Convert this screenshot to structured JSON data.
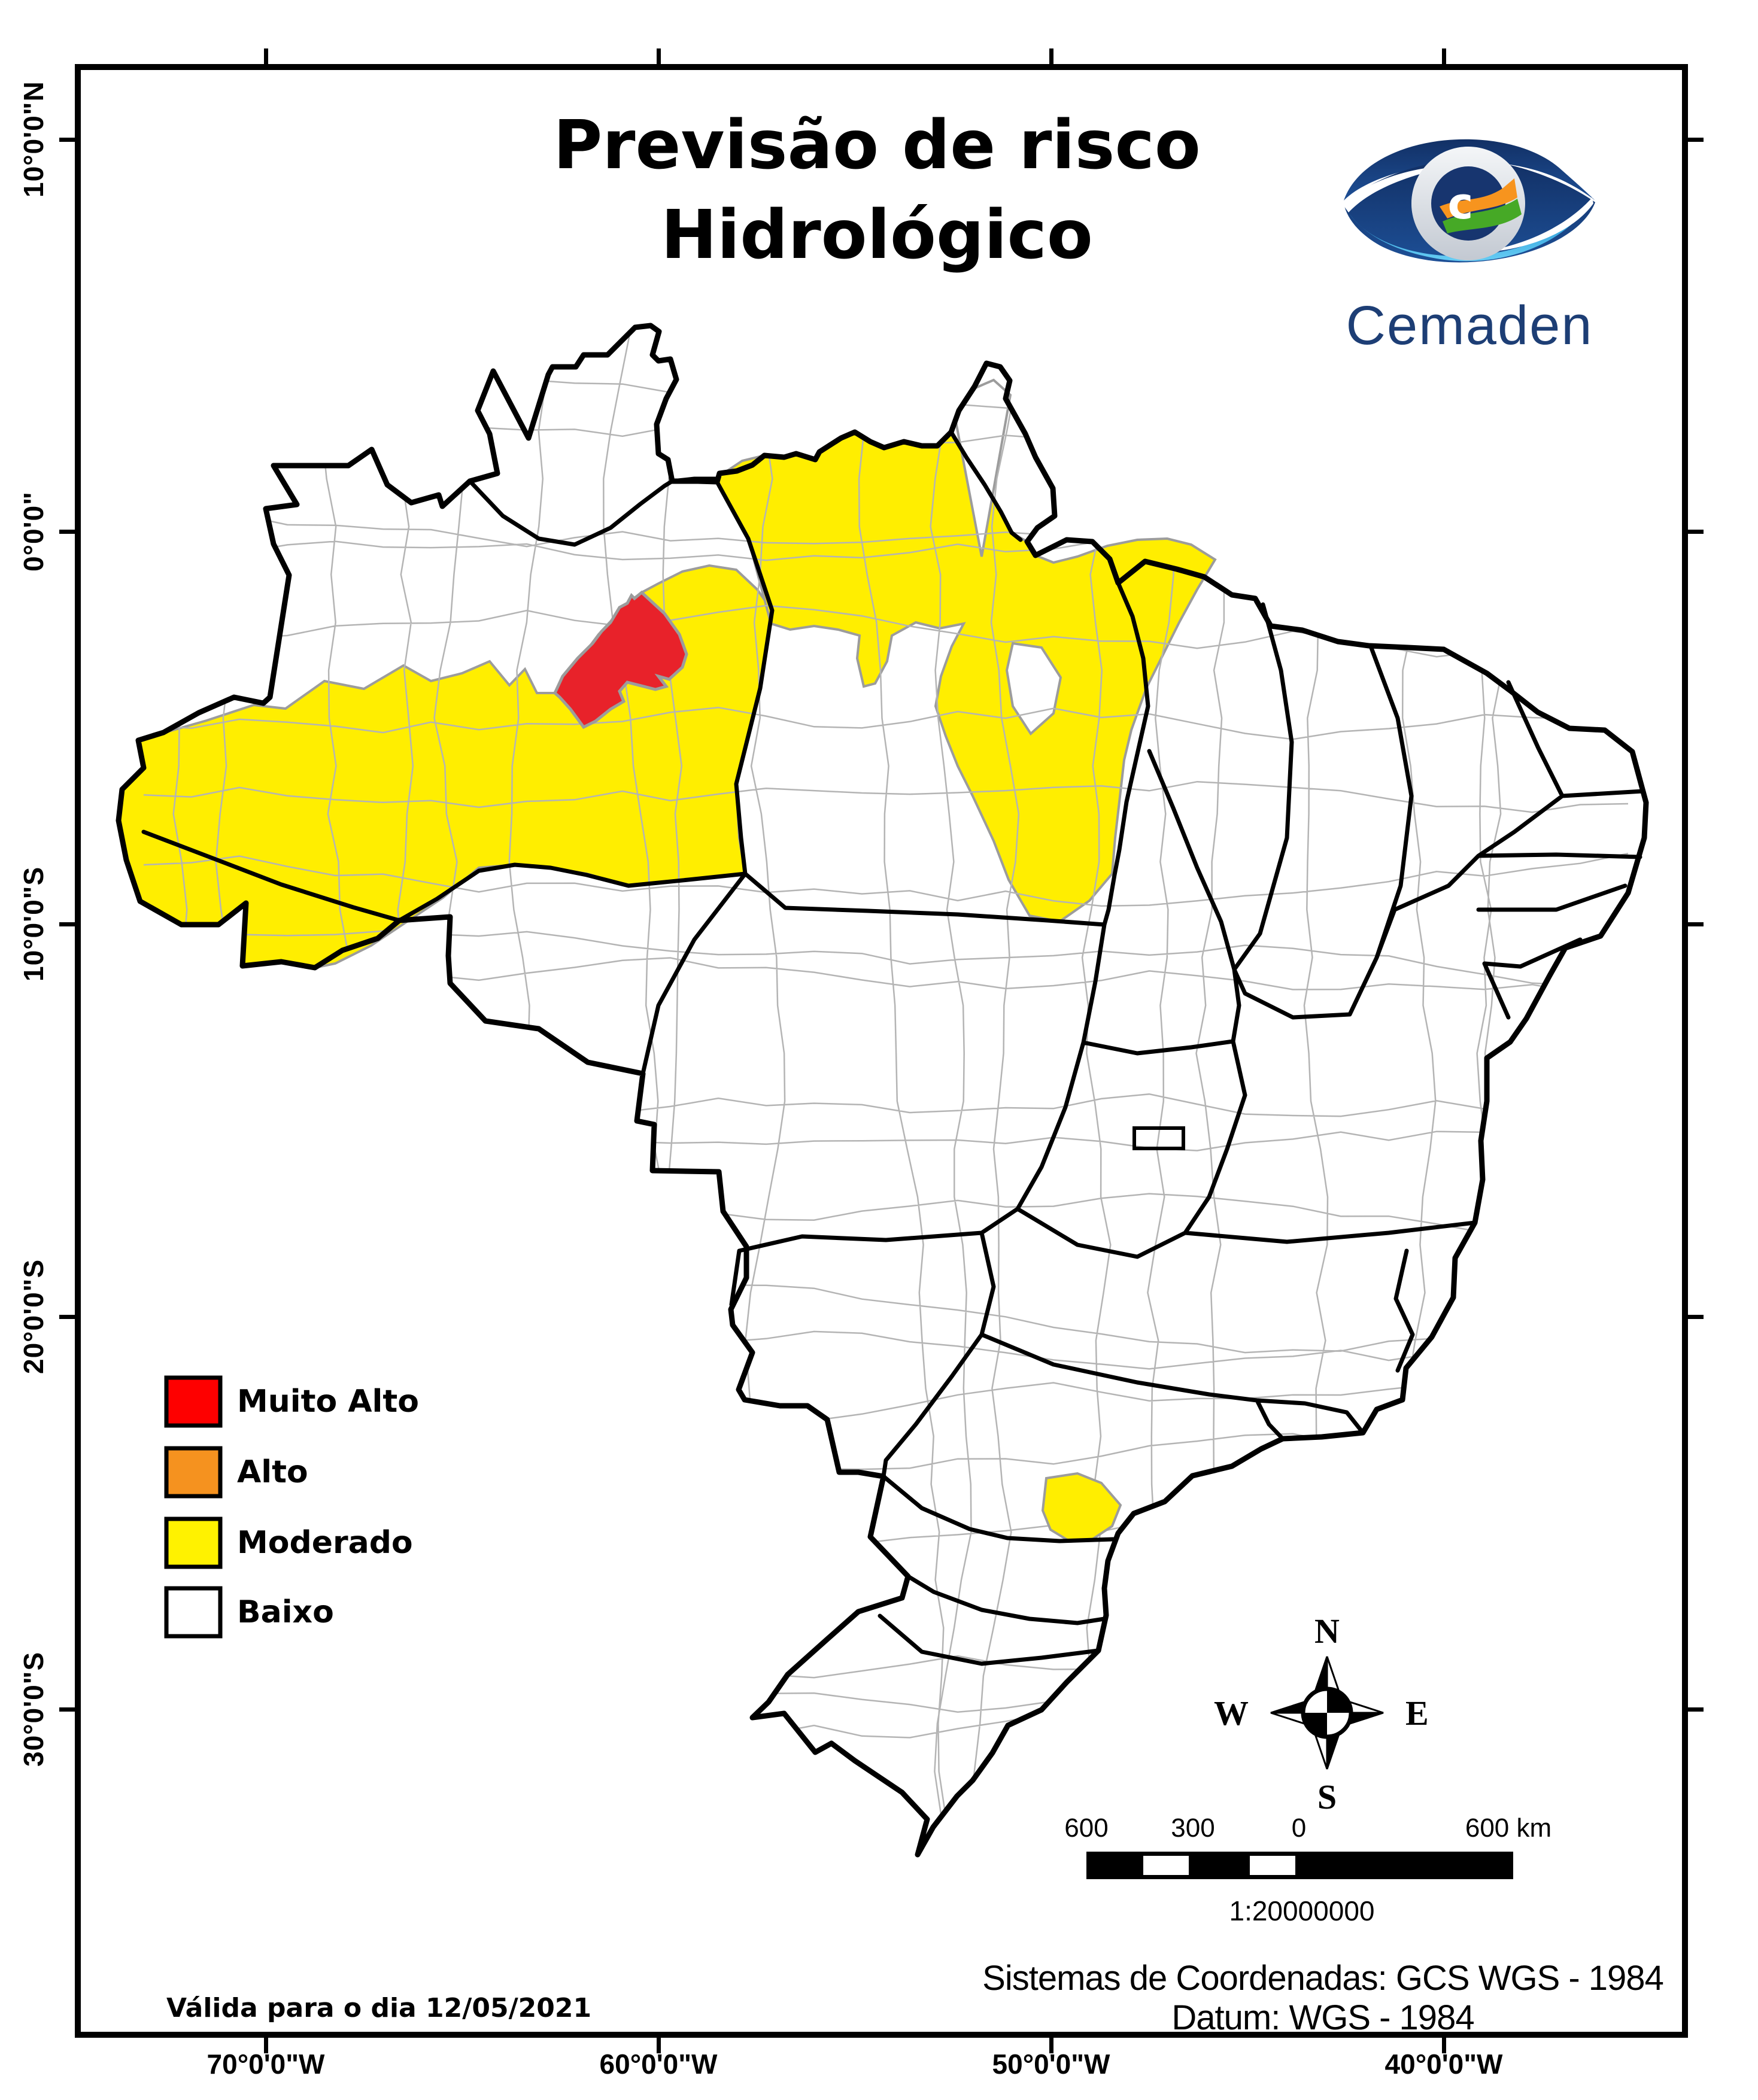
{
  "title": {
    "line1": "Previsão de risco",
    "line2": "Hidrológico"
  },
  "logo": {
    "wordmark": "Cemaden"
  },
  "legend": {
    "items": [
      {
        "label": "Muito Alto",
        "color": "#fe0000"
      },
      {
        "label": "Alto",
        "color": "#f5921f"
      },
      {
        "label": "Moderado",
        "color": "#fff200"
      },
      {
        "label": "Baixo",
        "color": "#ffffff"
      }
    ]
  },
  "map": {
    "colors": {
      "muito_alto": "#e8222a",
      "moderado": "#ffee00",
      "baixo": "#ffffff",
      "municipal_border": "#b4b4b4",
      "state_border": "#000000"
    }
  },
  "axes": {
    "lat": [
      {
        "label": "10°0'0\"N"
      },
      {
        "label": "0°0'0\""
      },
      {
        "label": "10°0'0\"S"
      },
      {
        "label": "20°0'0\"S"
      },
      {
        "label": "30°0'0\"S"
      }
    ],
    "lon": [
      {
        "label": "70°0'0\"W"
      },
      {
        "label": "60°0'0\"W"
      },
      {
        "label": "50°0'0\"W"
      },
      {
        "label": "40°0'0\"W"
      }
    ]
  },
  "compass": {
    "north": "N",
    "south": "S",
    "east": "E",
    "west": "W"
  },
  "scalebar": {
    "ticks": [
      "600",
      "300",
      "0"
    ],
    "end_label": "600 km",
    "ratio": "1:20000000"
  },
  "footer": {
    "coordinate_system": "Sistemas de Coordenadas: GCS WGS - 1984",
    "datum": "Datum: WGS - 1984",
    "validity": "Válida para o dia 12/05/2021"
  }
}
